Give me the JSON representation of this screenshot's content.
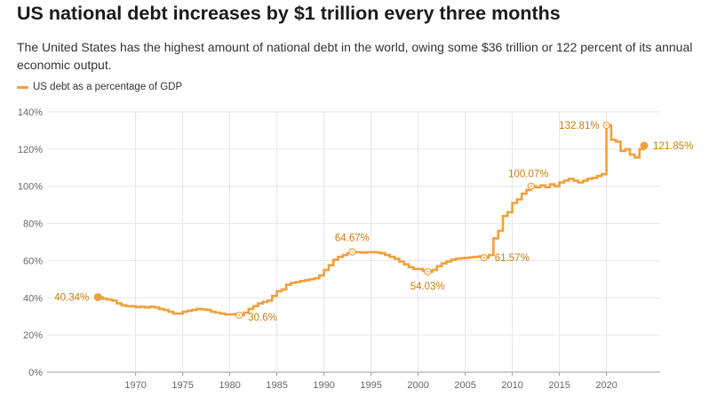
{
  "header": {
    "title": "US national debt increases by $1 trillion every three months",
    "subtitle": "The United States has the highest amount of national debt in the world, owing some $36 trillion or 122 percent of its annual economic output."
  },
  "legend": {
    "label": "US debt as a percentage of GDP"
  },
  "colors": {
    "series": "#f0a03b",
    "annotation_text": "#c87d12",
    "grid": "#e6e6e6",
    "axis_text": "#666666"
  },
  "chart_data": {
    "type": "line",
    "xlim": [
      1960.6,
      2025.7
    ],
    "ylim": [
      0,
      140
    ],
    "x_ticks": [
      1970,
      1975,
      1980,
      1985,
      1990,
      1995,
      2000,
      2005,
      2010,
      2015,
      2020
    ],
    "y_ticks": [
      0,
      20,
      40,
      60,
      80,
      100,
      120,
      140
    ],
    "y_tick_labels": [
      "0%",
      "20%",
      "40%",
      "60%",
      "80%",
      "100%",
      "120%",
      "140%"
    ],
    "grid": true,
    "step": true,
    "series": [
      {
        "name": "US debt as a percentage of GDP",
        "x": [
          1966,
          1966.5,
          1967,
          1967.5,
          1968,
          1968.5,
          1969,
          1969.5,
          1970,
          1970.5,
          1971,
          1971.5,
          1972,
          1972.5,
          1973,
          1973.5,
          1974,
          1974.5,
          1975,
          1975.5,
          1976,
          1976.5,
          1977,
          1977.5,
          1978,
          1978.5,
          1979,
          1979.5,
          1980,
          1980.5,
          1981,
          1981.5,
          1982,
          1982.5,
          1983,
          1983.5,
          1984,
          1984.5,
          1985,
          1985.5,
          1986,
          1986.5,
          1987,
          1987.5,
          1988,
          1988.5,
          1989,
          1989.5,
          1990,
          1990.5,
          1991,
          1991.5,
          1992,
          1992.5,
          1993,
          1993.5,
          1994,
          1994.5,
          1995,
          1995.5,
          1996,
          1996.5,
          1997,
          1997.5,
          1998,
          1998.5,
          1999,
          1999.5,
          2000,
          2000.5,
          2001,
          2001.5,
          2002,
          2002.5,
          2003,
          2003.5,
          2004,
          2004.5,
          2005,
          2005.5,
          2006,
          2006.5,
          2007,
          2007.5,
          2008,
          2008.5,
          2009,
          2009.5,
          2010,
          2010.5,
          2011,
          2011.5,
          2012,
          2012.5,
          2013,
          2013.5,
          2014,
          2014.5,
          2015,
          2015.5,
          2016,
          2016.5,
          2017,
          2017.5,
          2018,
          2018.5,
          2019,
          2019.5,
          2020,
          2020.5,
          2021,
          2021.5,
          2022,
          2022.5,
          2023,
          2023.5,
          2024
        ],
        "y": [
          40.34,
          39.5,
          39,
          38.5,
          37,
          36,
          35.5,
          35.5,
          35,
          35.2,
          34.8,
          35.2,
          34.8,
          34,
          33.5,
          32.5,
          31.5,
          31.5,
          32.5,
          33,
          33.5,
          34,
          33.8,
          33.5,
          32.5,
          32,
          31.5,
          31,
          31,
          31.3,
          30.6,
          32,
          34,
          35.5,
          37,
          37.8,
          38.5,
          41,
          43.5,
          44.5,
          47,
          48,
          48.5,
          49,
          49.5,
          50,
          50.5,
          52,
          55,
          57.5,
          60.5,
          62,
          63,
          64,
          64.67,
          64.5,
          64.3,
          64.5,
          64.6,
          64.4,
          64,
          63,
          62,
          61,
          59.5,
          58,
          56.5,
          55.5,
          55.5,
          54.5,
          54.03,
          55,
          57,
          58.5,
          59.5,
          60.5,
          61,
          61.3,
          61.5,
          61.8,
          62,
          62.3,
          61.57,
          63,
          72,
          76,
          84,
          86,
          91,
          93,
          96,
          98,
          100.07,
          99.5,
          100.5,
          99.5,
          101,
          100,
          102,
          103,
          104,
          103,
          102,
          103,
          104,
          104.5,
          105.5,
          106.5,
          132.81,
          125,
          124,
          119,
          120,
          117,
          115.5,
          120,
          121.85
        ]
      }
    ],
    "annotations": [
      {
        "x": 1966,
        "y": 40.34,
        "label": "40.34%",
        "filled": true
      },
      {
        "x": 1981,
        "y": 30.6,
        "label": "30.6%",
        "filled": false
      },
      {
        "x": 1993,
        "y": 64.67,
        "label": "64.67%",
        "filled": false
      },
      {
        "x": 2001,
        "y": 54.03,
        "label": "54.03%",
        "filled": false
      },
      {
        "x": 2007,
        "y": 61.57,
        "label": "61.57%",
        "filled": false
      },
      {
        "x": 2012,
        "y": 100.07,
        "label": "100.07%",
        "filled": false
      },
      {
        "x": 2020,
        "y": 132.81,
        "label": "132.81%",
        "filled": false
      },
      {
        "x": 2024,
        "y": 121.85,
        "label": "121.85%",
        "filled": true
      }
    ]
  }
}
